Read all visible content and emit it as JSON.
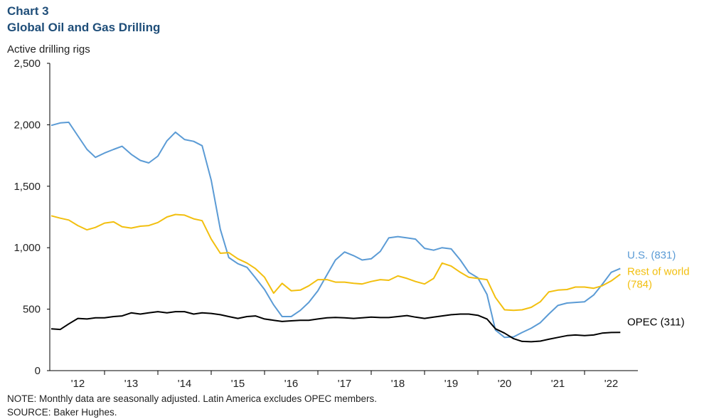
{
  "chart_data": {
    "type": "line",
    "title": "Chart 3",
    "subtitle": "Global Oil and Gas Drilling",
    "y_label": "Active drilling rigs",
    "notes": [
      "NOTE: Monthly data are seasonally adjusted. Latin America excludes OPEC members.",
      "SOURCE: Baker Hughes."
    ],
    "xlim": [
      2012,
      2023
    ],
    "xticks": [
      {
        "value": 2012.5,
        "label": "'12"
      },
      {
        "value": 2013.5,
        "label": "'13"
      },
      {
        "value": 2014.5,
        "label": "'14"
      },
      {
        "value": 2015.5,
        "label": "'15"
      },
      {
        "value": 2016.5,
        "label": "'16"
      },
      {
        "value": 2017.5,
        "label": "'17"
      },
      {
        "value": 2018.5,
        "label": "'18"
      },
      {
        "value": 2019.5,
        "label": "'19"
      },
      {
        "value": 2020.5,
        "label": "'20"
      },
      {
        "value": 2021.5,
        "label": "'21"
      },
      {
        "value": 2022.5,
        "label": "'22"
      }
    ],
    "ylim": [
      0,
      2500
    ],
    "yticks": [
      0,
      500,
      {
        "value": 1000,
        "label": "1,000"
      },
      {
        "value": 1500,
        "label": "1,500"
      },
      {
        "value": 2000,
        "label": "2,000"
      },
      {
        "value": 2500,
        "label": "2,500"
      }
    ],
    "grid": false,
    "x": [
      2012,
      2012.17,
      2012.33,
      2012.5,
      2012.67,
      2012.83,
      2013,
      2013.17,
      2013.33,
      2013.5,
      2013.67,
      2013.83,
      2014,
      2014.17,
      2014.33,
      2014.5,
      2014.67,
      2014.83,
      2015,
      2015.17,
      2015.33,
      2015.5,
      2015.67,
      2015.83,
      2016,
      2016.17,
      2016.33,
      2016.5,
      2016.67,
      2016.83,
      2017,
      2017.17,
      2017.33,
      2017.5,
      2017.67,
      2017.83,
      2018,
      2018.17,
      2018.33,
      2018.5,
      2018.67,
      2018.83,
      2019,
      2019.17,
      2019.33,
      2019.5,
      2019.67,
      2019.83,
      2020,
      2020.17,
      2020.33,
      2020.5,
      2020.67,
      2020.83,
      2021,
      2021.17,
      2021.33,
      2021.5,
      2021.67,
      2021.83,
      2022,
      2022.17,
      2022.33,
      2022.5,
      2022.67
    ],
    "series": [
      {
        "name": "U.S.",
        "labels": [
          "U.S. (831)"
        ],
        "color": "#5b9bd5",
        "values": [
          1995,
          2015,
          2020,
          1910,
          1800,
          1735,
          1770,
          1800,
          1825,
          1760,
          1710,
          1690,
          1745,
          1870,
          1940,
          1880,
          1865,
          1830,
          1550,
          1150,
          920,
          870,
          840,
          755,
          660,
          535,
          440,
          440,
          490,
          555,
          650,
          780,
          900,
          965,
          935,
          900,
          910,
          970,
          1080,
          1090,
          1080,
          1070,
          995,
          980,
          1000,
          990,
          900,
          800,
          755,
          620,
          330,
          270,
          275,
          310,
          345,
          390,
          460,
          530,
          550,
          555,
          560,
          615,
          700,
          800,
          831
        ]
      },
      {
        "name": "Rest of world",
        "labels": [
          "Rest of world",
          "(784)"
        ],
        "color": "#f2bf0f",
        "values": [
          1260,
          1240,
          1225,
          1180,
          1145,
          1165,
          1200,
          1210,
          1170,
          1160,
          1175,
          1180,
          1205,
          1250,
          1270,
          1265,
          1235,
          1220,
          1070,
          955,
          960,
          910,
          875,
          830,
          760,
          630,
          710,
          650,
          655,
          690,
          740,
          740,
          720,
          720,
          710,
          705,
          725,
          740,
          735,
          770,
          750,
          725,
          705,
          750,
          875,
          850,
          800,
          760,
          750,
          740,
          595,
          495,
          490,
          495,
          515,
          560,
          640,
          655,
          660,
          680,
          680,
          670,
          690,
          730,
          784
        ]
      },
      {
        "name": "OPEC",
        "labels": [
          "OPEC (311)"
        ],
        "color": "#000000",
        "values": [
          340,
          335,
          380,
          425,
          420,
          430,
          430,
          440,
          445,
          470,
          460,
          470,
          480,
          470,
          480,
          480,
          460,
          470,
          465,
          455,
          440,
          425,
          440,
          445,
          420,
          410,
          400,
          405,
          410,
          410,
          420,
          430,
          433,
          430,
          425,
          430,
          435,
          432,
          432,
          440,
          448,
          435,
          425,
          435,
          445,
          455,
          460,
          460,
          450,
          420,
          340,
          305,
          260,
          238,
          235,
          240,
          255,
          270,
          285,
          290,
          285,
          290,
          305,
          310,
          311
        ]
      }
    ]
  }
}
